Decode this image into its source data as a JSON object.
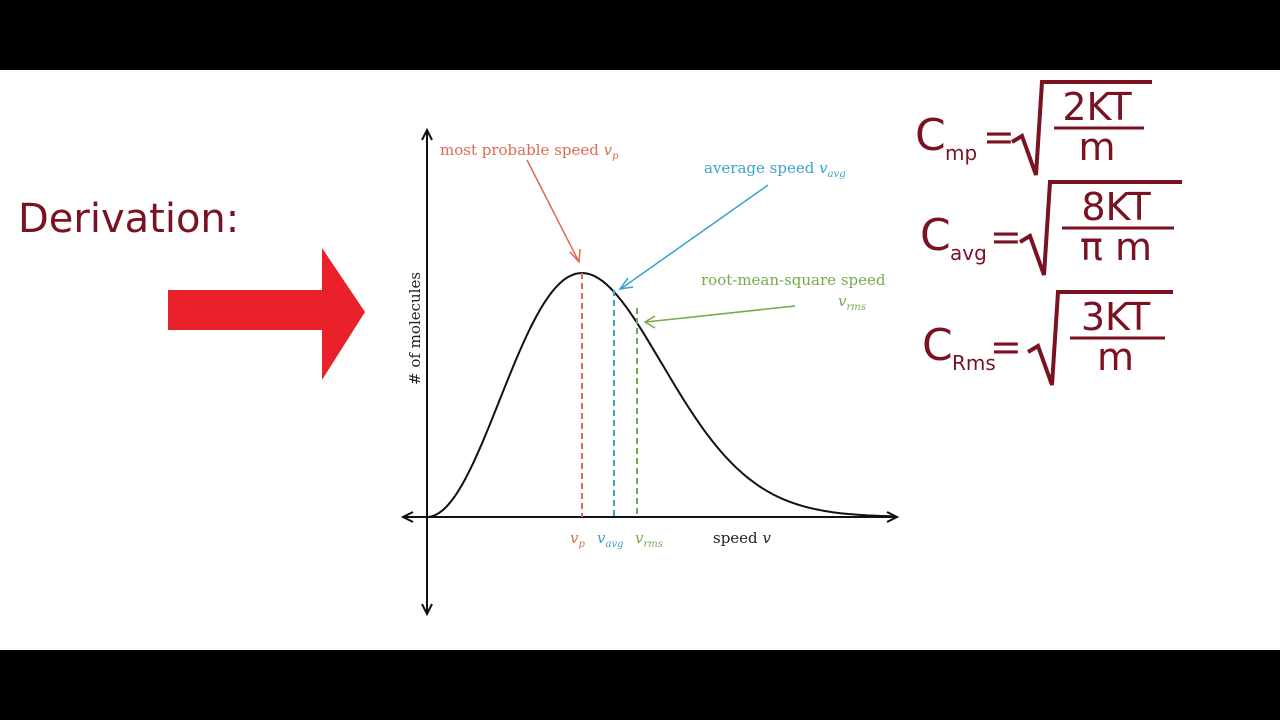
{
  "title": "Derivation:",
  "diagram": {
    "y_axis_label": "# of molecules",
    "x_axis_label": {
      "text": "speed",
      "symbol": "v"
    },
    "annotations": [
      {
        "text": "most probable speed",
        "symbol": "v",
        "subscript": "p"
      },
      {
        "text": "average speed",
        "symbol": "v",
        "subscript": "avg"
      },
      {
        "text": "root-mean-square speed",
        "symbol": "v",
        "subscript": "rms"
      }
    ],
    "x_marks": [
      {
        "symbol": "v",
        "subscript": "p"
      },
      {
        "symbol": "v",
        "subscript": "avg"
      },
      {
        "symbol": "v",
        "subscript": "rms"
      }
    ]
  },
  "formulas": [
    {
      "symbol": "C",
      "subscript": "mp",
      "relation": "=",
      "numerator": "2KT",
      "denominator": "m"
    },
    {
      "symbol": "C",
      "subscript": "avg",
      "relation": "=",
      "numerator": "8KT",
      "denominator": "π m"
    },
    {
      "symbol": "C",
      "subscript": "Rms",
      "relation": "=",
      "numerator": "3KT",
      "denominator": "m"
    }
  ]
}
